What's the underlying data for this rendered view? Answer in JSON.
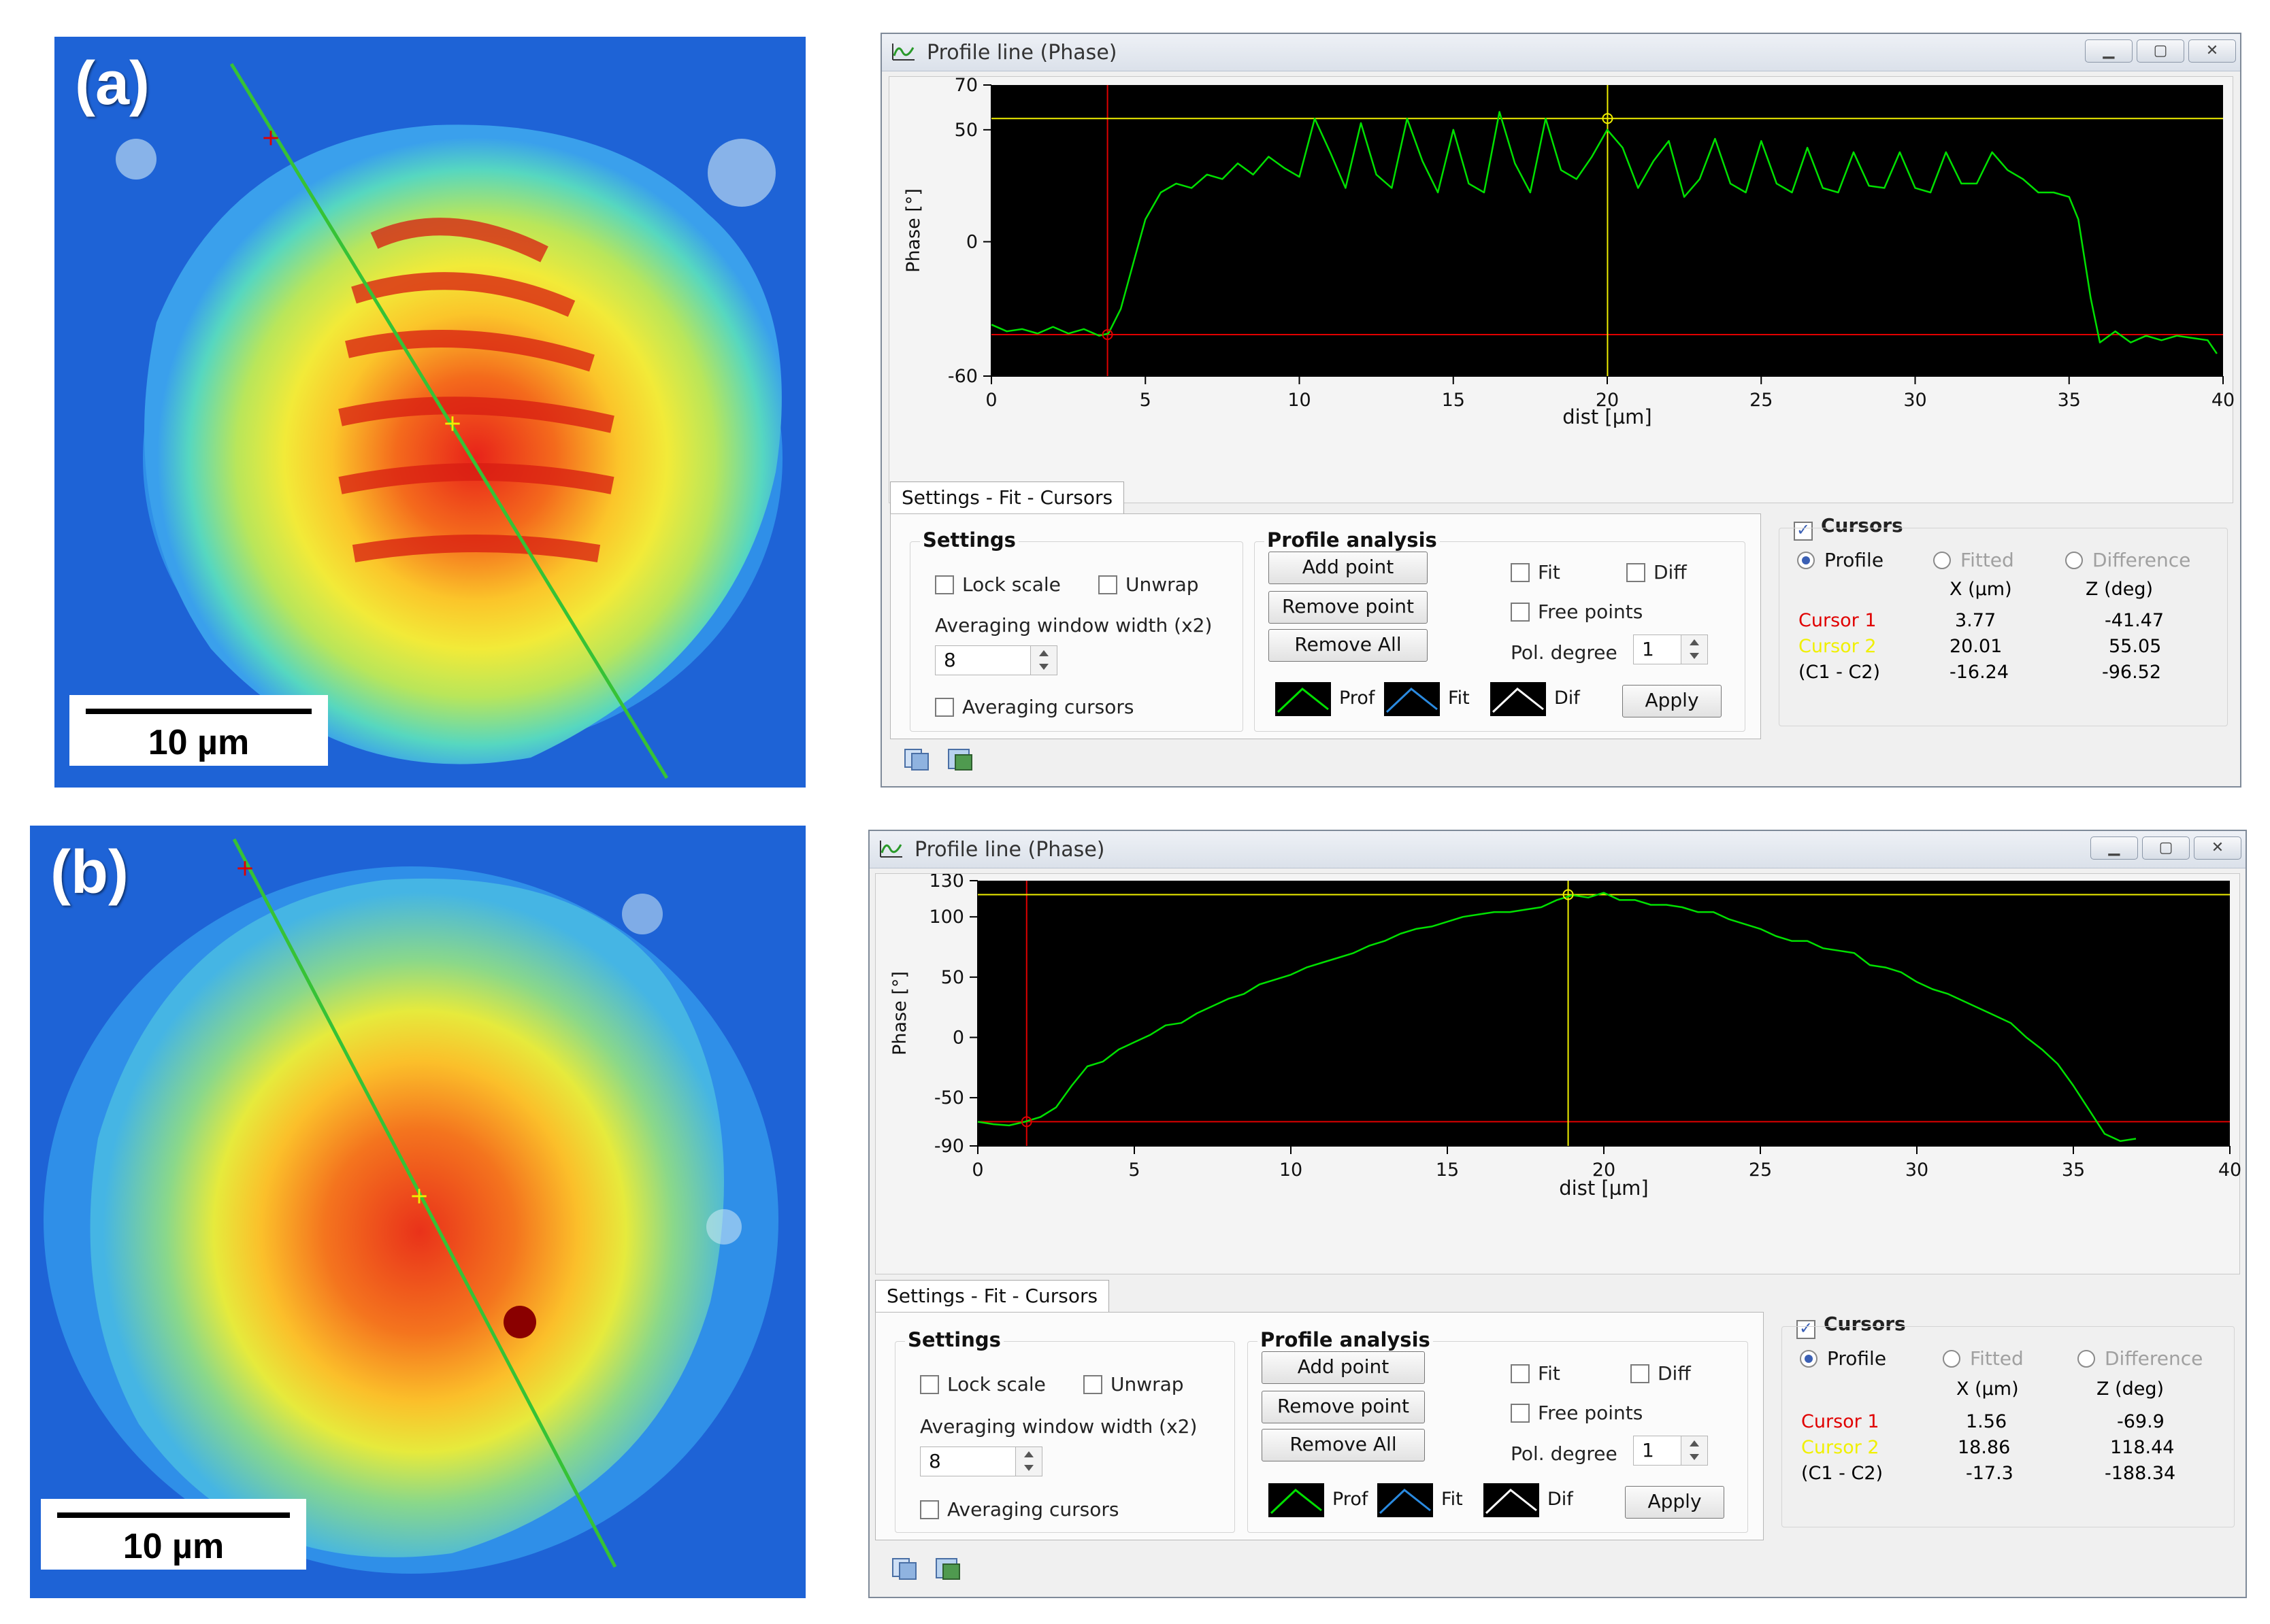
{
  "panels": [
    {
      "id": "a",
      "label": "(a)",
      "scale_bar": "10 µm",
      "window": {
        "title": "Profile line (Phase)",
        "chart_data": {
          "type": "line",
          "ylabel": "Phase [°]",
          "xlabel": "dist [µm]",
          "xlim": [
            0,
            40
          ],
          "ylim": [
            -60,
            70
          ],
          "x_ticks": [
            0,
            5,
            10,
            15,
            20,
            25,
            30,
            35,
            40
          ],
          "y_ticks": [
            70,
            50,
            0,
            -60
          ],
          "series": [
            {
              "color": "#00e000",
              "x": [
                0,
                0.5,
                1,
                1.5,
                2,
                2.5,
                3,
                3.5,
                3.8,
                4.2,
                4.6,
                5,
                5.5,
                6,
                6.5,
                7,
                7.5,
                8,
                8.5,
                9,
                9.5,
                10,
                10.5,
                11,
                11.5,
                12,
                12.5,
                13,
                13.5,
                14,
                14.5,
                15,
                15.5,
                16,
                16.5,
                17,
                17.5,
                18,
                18.5,
                19,
                19.5,
                20,
                20.5,
                21,
                21.5,
                22,
                22.5,
                23,
                23.5,
                24,
                24.5,
                25,
                25.5,
                26,
                26.5,
                27,
                27.5,
                28,
                28.5,
                29,
                29.5,
                30,
                30.5,
                31,
                31.5,
                32,
                32.5,
                33,
                33.5,
                34,
                34.5,
                35,
                35.3,
                35.7,
                36,
                36.5,
                37,
                37.5,
                38,
                38.5,
                39,
                39.5,
                39.8
              ],
              "y": [
                -37,
                -40,
                -39,
                -41,
                -38,
                -41,
                -39,
                -42,
                -41,
                -30,
                -10,
                10,
                22,
                26,
                24,
                30,
                28,
                35,
                30,
                38,
                33,
                29,
                55,
                40,
                24,
                53,
                30,
                24,
                55,
                36,
                22,
                50,
                26,
                22,
                58,
                35,
                22,
                55,
                32,
                28,
                38,
                50,
                42,
                24,
                36,
                45,
                20,
                28,
                46,
                26,
                22,
                45,
                26,
                22,
                42,
                24,
                22,
                40,
                25,
                24,
                40,
                24,
                22,
                40,
                26,
                26,
                40,
                32,
                28,
                22,
                22,
                20,
                10,
                -25,
                -45,
                -40,
                -45,
                -42,
                -44,
                -42,
                -43,
                -44,
                -50
              ]
            }
          ],
          "cursor_x": [
            3.77,
            20.01
          ],
          "cursor_y": [
            -41.47,
            55.05
          ]
        },
        "tab_label": "Settings - Fit - Cursors",
        "settings": {
          "title": "Settings",
          "lock_scale": "Lock scale",
          "unwrap": "Unwrap",
          "avg_label": "Averaging window width (x2)",
          "avg_value": "8",
          "avg_cursors": "Averaging cursors"
        },
        "profile_analysis": {
          "title": "Profile analysis",
          "add_point": "Add point",
          "remove_point": "Remove point",
          "remove_all": "Remove All",
          "fit": "Fit",
          "diff": "Diff",
          "free_points": "Free points",
          "pol_degree_label": "Pol. degree",
          "pol_degree_value": "1",
          "legend": [
            "Prof",
            "Fit",
            "Dif"
          ],
          "apply": "Apply"
        },
        "cursors": {
          "title": "Cursors",
          "profile": "Profile",
          "fitted": "Fitted",
          "difference": "Difference",
          "col_x": "X (µm)",
          "col_z": "Z (deg)",
          "rows": [
            {
              "name": "Cursor 1",
              "x": "3.77",
              "z": "-41.47"
            },
            {
              "name": "Cursor 2",
              "x": "20.01",
              "z": "55.05"
            },
            {
              "name": "(C1 - C2)",
              "x": "-16.24",
              "z": "-96.52"
            }
          ]
        }
      }
    },
    {
      "id": "b",
      "label": "(b)",
      "scale_bar": "10 µm",
      "window": {
        "title": "Profile line (Phase)",
        "chart_data": {
          "type": "line",
          "ylabel": "Phase [°]",
          "xlabel": "dist [µm]",
          "xlim": [
            0,
            40
          ],
          "ylim": [
            -90,
            130
          ],
          "x_ticks": [
            0,
            5,
            10,
            15,
            20,
            25,
            30,
            35,
            40
          ],
          "y_ticks": [
            130,
            100,
            50,
            0,
            -50,
            -90
          ],
          "series": [
            {
              "color": "#00e000",
              "x": [
                0,
                0.5,
                1,
                1.5,
                2,
                2.5,
                3,
                3.5,
                4,
                4.5,
                5,
                5.5,
                6,
                6.5,
                7,
                7.5,
                8,
                8.5,
                9,
                9.5,
                10,
                10.5,
                11,
                11.5,
                12,
                12.5,
                13,
                13.5,
                14,
                14.5,
                15,
                15.5,
                16,
                16.5,
                17,
                17.5,
                18,
                18.5,
                19,
                19.5,
                20,
                20.5,
                21,
                21.5,
                22,
                22.5,
                23,
                23.5,
                24,
                24.5,
                25,
                25.5,
                26,
                26.5,
                27,
                27.5,
                28,
                28.5,
                29,
                29.5,
                30,
                30.5,
                31,
                31.5,
                32,
                32.5,
                33,
                33.5,
                34,
                34.5,
                35,
                35.5,
                36,
                36.5,
                37
              ],
              "y": [
                -70,
                -72,
                -73,
                -70,
                -66,
                -58,
                -40,
                -24,
                -20,
                -10,
                -4,
                2,
                10,
                12,
                20,
                26,
                32,
                36,
                44,
                48,
                52,
                58,
                62,
                66,
                70,
                76,
                80,
                86,
                90,
                92,
                96,
                100,
                102,
                104,
                104,
                106,
                108,
                114,
                118,
                116,
                120,
                114,
                114,
                110,
                110,
                108,
                104,
                104,
                98,
                94,
                90,
                84,
                80,
                80,
                74,
                72,
                70,
                60,
                58,
                54,
                46,
                40,
                36,
                30,
                24,
                18,
                12,
                0,
                -10,
                -22,
                -40,
                -60,
                -80,
                -86,
                -84
              ]
            }
          ],
          "cursor_x": [
            1.56,
            18.86
          ],
          "cursor_y": [
            -69.9,
            118.44
          ]
        },
        "tab_label": "Settings - Fit - Cursors",
        "settings": {
          "title": "Settings",
          "lock_scale": "Lock scale",
          "unwrap": "Unwrap",
          "avg_label": "Averaging window width (x2)",
          "avg_value": "8",
          "avg_cursors": "Averaging cursors"
        },
        "profile_analysis": {
          "title": "Profile analysis",
          "add_point": "Add point",
          "remove_point": "Remove point",
          "remove_all": "Remove All",
          "fit": "Fit",
          "diff": "Diff",
          "free_points": "Free points",
          "pol_degree_label": "Pol. degree",
          "pol_degree_value": "1",
          "legend": [
            "Prof",
            "Fit",
            "Dif"
          ],
          "apply": "Apply"
        },
        "cursors": {
          "title": "Cursors",
          "profile": "Profile",
          "fitted": "Fitted",
          "difference": "Difference",
          "col_x": "X (µm)",
          "col_z": "Z (deg)",
          "rows": [
            {
              "name": "Cursor 1",
              "x": "1.56",
              "z": "-69.9"
            },
            {
              "name": "Cursor 2",
              "x": "18.86",
              "z": "118.44"
            },
            {
              "name": "(C1 - C2)",
              "x": "-17.3",
              "z": "-188.34"
            }
          ]
        }
      }
    }
  ],
  "colors": {
    "cursor1": "#e00000",
    "cursor2": "#f0f000",
    "profile": "#00e000",
    "disabled_text": "#a0a0a0"
  }
}
